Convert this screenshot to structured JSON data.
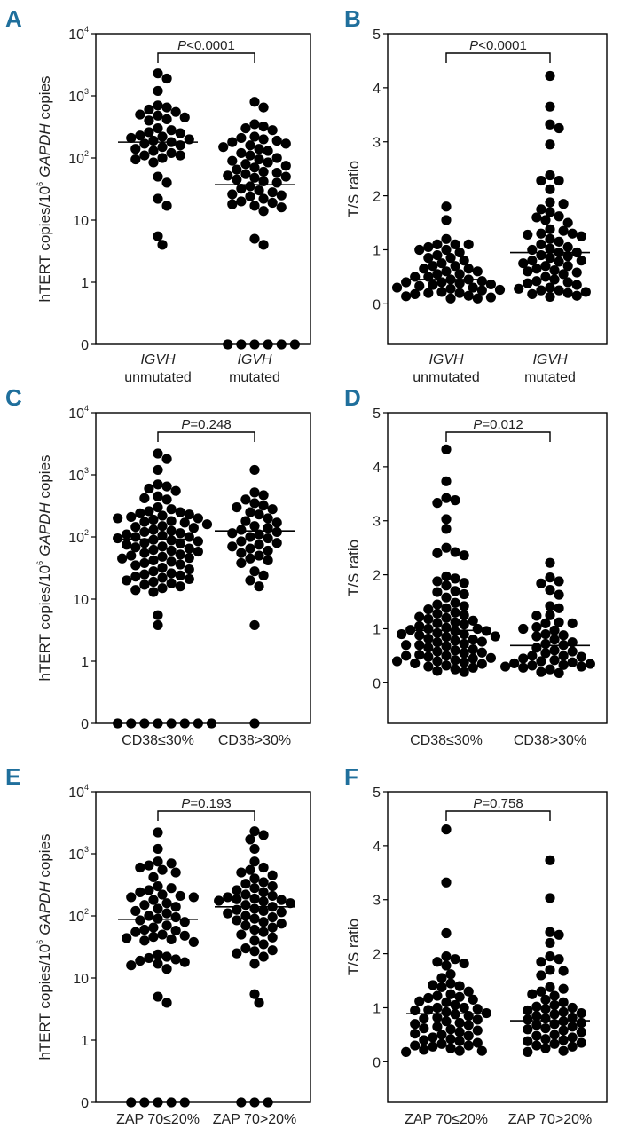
{
  "colors": {
    "panel_letter": "#1f6f9c",
    "dots": "#000000",
    "axes": "#000000"
  },
  "chart_data": [
    {
      "panel": "A",
      "type": "scatter",
      "yscale": "log",
      "ylabel": {
        "pre": "hTERT copies/10",
        "sup": "6",
        "gene": "GAPDH",
        "post": " copies"
      },
      "yticks": [
        {
          "base": "0",
          "exp": ""
        },
        {
          "base": "1",
          "exp": ""
        },
        {
          "base": "10",
          "exp": ""
        },
        {
          "base": "10",
          "exp": "2"
        },
        {
          "base": "10",
          "exp": "3"
        },
        {
          "base": "10",
          "exp": "4"
        }
      ],
      "ytick_values": [
        0,
        1,
        10,
        100,
        1000,
        10000
      ],
      "categories": [
        {
          "gene": "IGVH",
          "line": "unmutated"
        },
        {
          "gene": "IGVH",
          "line": "mutated"
        }
      ],
      "p_value": {
        "italic": "P",
        "rest": "<0.0001"
      },
      "medians": [
        180,
        37
      ],
      "series": [
        {
          "name": "IGVH unmutated",
          "values": [
            2300,
            1900,
            1200,
            700,
            650,
            600,
            550,
            500,
            480,
            450,
            420,
            400,
            300,
            280,
            260,
            250,
            230,
            220,
            210,
            200,
            190,
            180,
            170,
            160,
            150,
            140,
            130,
            120,
            110,
            110,
            100,
            95,
            85,
            50,
            40,
            22,
            17,
            5.5,
            4
          ]
        },
        {
          "name": "IGVH mutated",
          "values": [
            800,
            650,
            350,
            320,
            300,
            280,
            220,
            210,
            200,
            190,
            180,
            170,
            160,
            150,
            140,
            130,
            120,
            110,
            100,
            95,
            90,
            85,
            80,
            75,
            70,
            65,
            60,
            58,
            55,
            52,
            50,
            48,
            45,
            42,
            40,
            35,
            32,
            30,
            28,
            26,
            25,
            24,
            22,
            20,
            19,
            18,
            17,
            16,
            14,
            5,
            4,
            0,
            0,
            0,
            0,
            0,
            0
          ]
        }
      ]
    },
    {
      "panel": "B",
      "type": "scatter",
      "yscale": "linear",
      "ylim": [
        -0.75,
        5
      ],
      "ylabel": {
        "text": "T/S ratio"
      },
      "yticks": [
        {
          "base": "0",
          "exp": ""
        },
        {
          "base": "1",
          "exp": ""
        },
        {
          "base": "2",
          "exp": ""
        },
        {
          "base": "3",
          "exp": ""
        },
        {
          "base": "4",
          "exp": ""
        },
        {
          "base": "5",
          "exp": ""
        }
      ],
      "ytick_values": [
        0,
        1,
        2,
        3,
        4,
        5
      ],
      "categories": [
        {
          "gene": "IGVH",
          "line": "unmutated"
        },
        {
          "gene": "IGVH",
          "line": "mutated"
        }
      ],
      "p_value": {
        "italic": "P",
        "rest": "<0.0001"
      },
      "medians": [
        0.45,
        0.95
      ],
      "series": [
        {
          "name": "IGVH unmutated",
          "values": [
            1.8,
            1.55,
            1.2,
            1.1,
            1.1,
            1.1,
            1.05,
            1.0,
            1.0,
            0.95,
            0.9,
            0.85,
            0.85,
            0.8,
            0.75,
            0.7,
            0.7,
            0.65,
            0.65,
            0.6,
            0.6,
            0.55,
            0.55,
            0.5,
            0.5,
            0.45,
            0.45,
            0.42,
            0.4,
            0.4,
            0.38,
            0.36,
            0.35,
            0.33,
            0.3,
            0.3,
            0.28,
            0.26,
            0.25,
            0.22,
            0.2,
            0.2,
            0.18,
            0.15,
            0.14,
            0.12,
            0.1,
            0.1
          ]
        },
        {
          "name": "IGVH mutated",
          "values": [
            4.22,
            3.65,
            3.32,
            3.25,
            2.95,
            2.38,
            2.28,
            2.28,
            2.12,
            1.88,
            1.85,
            1.75,
            1.7,
            1.62,
            1.6,
            1.55,
            1.5,
            1.38,
            1.35,
            1.3,
            1.3,
            1.28,
            1.25,
            1.2,
            1.15,
            1.1,
            1.05,
            1.02,
            1.0,
            0.95,
            0.95,
            0.9,
            0.88,
            0.85,
            0.8,
            0.8,
            0.78,
            0.75,
            0.7,
            0.7,
            0.65,
            0.62,
            0.6,
            0.58,
            0.55,
            0.5,
            0.45,
            0.42,
            0.4,
            0.38,
            0.35,
            0.3,
            0.28,
            0.25,
            0.25,
            0.22,
            0.2,
            0.18,
            0.15,
            0.13
          ]
        }
      ]
    },
    {
      "panel": "C",
      "type": "scatter",
      "yscale": "log",
      "ylabel": {
        "pre": "hTERT copies/10",
        "sup": "6",
        "gene": "GAPDH",
        "post": " copies"
      },
      "yticks": [
        {
          "base": "0",
          "exp": ""
        },
        {
          "base": "1",
          "exp": ""
        },
        {
          "base": "10",
          "exp": ""
        },
        {
          "base": "10",
          "exp": "2"
        },
        {
          "base": "10",
          "exp": "3"
        },
        {
          "base": "10",
          "exp": "4"
        }
      ],
      "ytick_values": [
        0,
        1,
        10,
        100,
        1000,
        10000
      ],
      "categories": [
        {
          "line": "CD38≤30%"
        },
        {
          "line": "CD38>30%"
        }
      ],
      "p_value": {
        "italic": "P",
        "rest": "=0.248"
      },
      "medians": [
        92,
        125
      ],
      "series": [
        {
          "name": "CD38≤30%",
          "values": [
            2200,
            1800,
            1200,
            700,
            650,
            600,
            550,
            450,
            420,
            400,
            300,
            280,
            260,
            250,
            240,
            230,
            220,
            210,
            200,
            200,
            190,
            180,
            175,
            170,
            160,
            150,
            145,
            140,
            130,
            125,
            120,
            115,
            110,
            105,
            100,
            100,
            95,
            90,
            88,
            85,
            80,
            78,
            75,
            70,
            68,
            65,
            62,
            60,
            58,
            55,
            52,
            50,
            48,
            46,
            45,
            42,
            40,
            38,
            36,
            35,
            32,
            30,
            28,
            26,
            25,
            24,
            23,
            22,
            21,
            20,
            19,
            18,
            17,
            16,
            15,
            14,
            13,
            5.5,
            3.8,
            0,
            0,
            0,
            0,
            0,
            0,
            0,
            0
          ]
        },
        {
          "name": "CD38>30%",
          "values": [
            1200,
            520,
            470,
            400,
            350,
            320,
            300,
            280,
            250,
            230,
            200,
            180,
            170,
            150,
            140,
            130,
            120,
            115,
            110,
            100,
            95,
            85,
            80,
            75,
            70,
            65,
            60,
            55,
            50,
            45,
            42,
            38,
            28,
            24,
            20,
            16,
            3.8,
            0
          ]
        }
      ]
    },
    {
      "panel": "D",
      "type": "scatter",
      "yscale": "linear",
      "ylim": [
        -0.75,
        5
      ],
      "ylabel": {
        "text": "T/S ratio"
      },
      "yticks": [
        {
          "base": "0",
          "exp": ""
        },
        {
          "base": "1",
          "exp": ""
        },
        {
          "base": "2",
          "exp": ""
        },
        {
          "base": "3",
          "exp": ""
        },
        {
          "base": "4",
          "exp": ""
        },
        {
          "base": "5",
          "exp": ""
        }
      ],
      "ytick_values": [
        0,
        1,
        2,
        3,
        4,
        5
      ],
      "categories": [
        {
          "line": "CD38≤30%"
        },
        {
          "line": "CD38>30%"
        }
      ],
      "p_value": {
        "italic": "P",
        "rest": "=0.012"
      },
      "medians": [
        0.97,
        0.69
      ],
      "series": [
        {
          "name": "CD38≤30%",
          "values": [
            4.32,
            3.73,
            3.42,
            3.38,
            3.33,
            3.03,
            2.85,
            2.5,
            2.42,
            2.4,
            2.36,
            1.97,
            1.93,
            1.88,
            1.85,
            1.8,
            1.7,
            1.68,
            1.64,
            1.58,
            1.48,
            1.45,
            1.42,
            1.38,
            1.36,
            1.3,
            1.28,
            1.25,
            1.22,
            1.2,
            1.18,
            1.15,
            1.12,
            1.1,
            1.08,
            1.05,
            1.02,
            1.0,
            1.0,
            0.98,
            0.96,
            0.95,
            0.92,
            0.9,
            0.9,
            0.88,
            0.86,
            0.85,
            0.82,
            0.8,
            0.78,
            0.76,
            0.75,
            0.72,
            0.7,
            0.7,
            0.68,
            0.65,
            0.62,
            0.6,
            0.58,
            0.56,
            0.55,
            0.52,
            0.5,
            0.5,
            0.48,
            0.46,
            0.45,
            0.42,
            0.4,
            0.4,
            0.38,
            0.36,
            0.35,
            0.32,
            0.3,
            0.28,
            0.25,
            0.22,
            0.2
          ]
        },
        {
          "name": "CD38>30%",
          "values": [
            2.22,
            1.95,
            1.88,
            1.84,
            1.72,
            1.63,
            1.42,
            1.38,
            1.25,
            1.24,
            1.12,
            1.1,
            1.1,
            1.03,
            1.0,
            0.97,
            0.9,
            0.88,
            0.86,
            0.8,
            0.75,
            0.72,
            0.7,
            0.65,
            0.6,
            0.58,
            0.55,
            0.5,
            0.5,
            0.48,
            0.45,
            0.42,
            0.4,
            0.38,
            0.36,
            0.35,
            0.33,
            0.32,
            0.3,
            0.3,
            0.28,
            0.25,
            0.2,
            0.18
          ]
        }
      ]
    },
    {
      "panel": "E",
      "type": "scatter",
      "yscale": "log",
      "ylabel": {
        "pre": "hTERT copies/10",
        "sup": "6",
        "gene": "GAPDH",
        "post": " copies"
      },
      "yticks": [
        {
          "base": "0",
          "exp": ""
        },
        {
          "base": "1",
          "exp": ""
        },
        {
          "base": "10",
          "exp": ""
        },
        {
          "base": "10",
          "exp": "2"
        },
        {
          "base": "10",
          "exp": "3"
        },
        {
          "base": "10",
          "exp": "4"
        }
      ],
      "ytick_values": [
        0,
        1,
        10,
        100,
        1000,
        10000
      ],
      "categories": [
        {
          "line": "ZAP 70≤20%"
        },
        {
          "line": "ZAP 70>20%"
        }
      ],
      "p_value": {
        "italic": "P",
        "rest": "=0.193"
      },
      "medians": [
        88,
        140
      ],
      "series": [
        {
          "name": "ZAP 70≤20%",
          "values": [
            2200,
            1200,
            750,
            700,
            650,
            600,
            550,
            500,
            420,
            300,
            280,
            260,
            240,
            220,
            210,
            200,
            200,
            180,
            160,
            150,
            140,
            130,
            120,
            110,
            100,
            95,
            90,
            85,
            80,
            70,
            65,
            60,
            58,
            55,
            50,
            48,
            46,
            44,
            42,
            40,
            38,
            24,
            22,
            21,
            20,
            19,
            18,
            17,
            16,
            14,
            5,
            4,
            0,
            0,
            0,
            0,
            0
          ]
        },
        {
          "name": "ZAP 70>20%",
          "values": [
            2300,
            2000,
            1700,
            1200,
            750,
            600,
            550,
            500,
            450,
            400,
            350,
            330,
            300,
            280,
            260,
            240,
            220,
            210,
            200,
            190,
            185,
            180,
            175,
            170,
            160,
            150,
            140,
            130,
            125,
            120,
            115,
            110,
            100,
            95,
            90,
            85,
            80,
            75,
            70,
            65,
            60,
            55,
            50,
            45,
            40,
            35,
            30,
            28,
            27,
            25,
            22,
            17,
            5.5,
            4,
            0,
            0,
            0
          ]
        }
      ]
    },
    {
      "panel": "F",
      "type": "scatter",
      "yscale": "linear",
      "ylim": [
        -0.75,
        5
      ],
      "ylabel": {
        "text": "T/S ratio"
      },
      "yticks": [
        {
          "base": "0",
          "exp": ""
        },
        {
          "base": "1",
          "exp": ""
        },
        {
          "base": "2",
          "exp": ""
        },
        {
          "base": "3",
          "exp": ""
        },
        {
          "base": "4",
          "exp": ""
        },
        {
          "base": "5",
          "exp": ""
        }
      ],
      "ytick_values": [
        0,
        1,
        2,
        3,
        4,
        5
      ],
      "categories": [
        {
          "line": "ZAP 70≤20%"
        },
        {
          "line": "ZAP 70>20%"
        }
      ],
      "p_value": {
        "italic": "P",
        "rest": "=0.758"
      },
      "medians": [
        0.89,
        0.76
      ],
      "series": [
        {
          "name": "ZAP 70≤20%",
          "values": [
            4.3,
            3.32,
            2.38,
            1.95,
            1.9,
            1.85,
            1.82,
            1.78,
            1.62,
            1.55,
            1.45,
            1.42,
            1.4,
            1.38,
            1.3,
            1.25,
            1.22,
            1.2,
            1.18,
            1.15,
            1.12,
            1.1,
            1.05,
            1.0,
            1.0,
            0.98,
            0.96,
            0.95,
            0.92,
            0.9,
            0.88,
            0.85,
            0.82,
            0.8,
            0.78,
            0.75,
            0.72,
            0.7,
            0.68,
            0.65,
            0.62,
            0.6,
            0.58,
            0.55,
            0.52,
            0.5,
            0.48,
            0.45,
            0.42,
            0.4,
            0.38,
            0.35,
            0.33,
            0.3,
            0.3,
            0.28,
            0.25,
            0.22,
            0.2,
            0.2,
            0.18
          ]
        },
        {
          "name": "ZAP 70>20%",
          "values": [
            3.73,
            3.03,
            2.4,
            2.35,
            2.2,
            1.95,
            1.9,
            1.85,
            1.7,
            1.68,
            1.6,
            1.38,
            1.35,
            1.3,
            1.25,
            1.22,
            1.15,
            1.1,
            1.05,
            1.02,
            1.0,
            0.98,
            0.95,
            0.92,
            0.9,
            0.88,
            0.85,
            0.82,
            0.8,
            0.78,
            0.75,
            0.72,
            0.7,
            0.68,
            0.65,
            0.62,
            0.6,
            0.58,
            0.55,
            0.5,
            0.48,
            0.45,
            0.42,
            0.4,
            0.38,
            0.35,
            0.33,
            0.3,
            0.28,
            0.25,
            0.2,
            0.18
          ]
        }
      ]
    }
  ]
}
